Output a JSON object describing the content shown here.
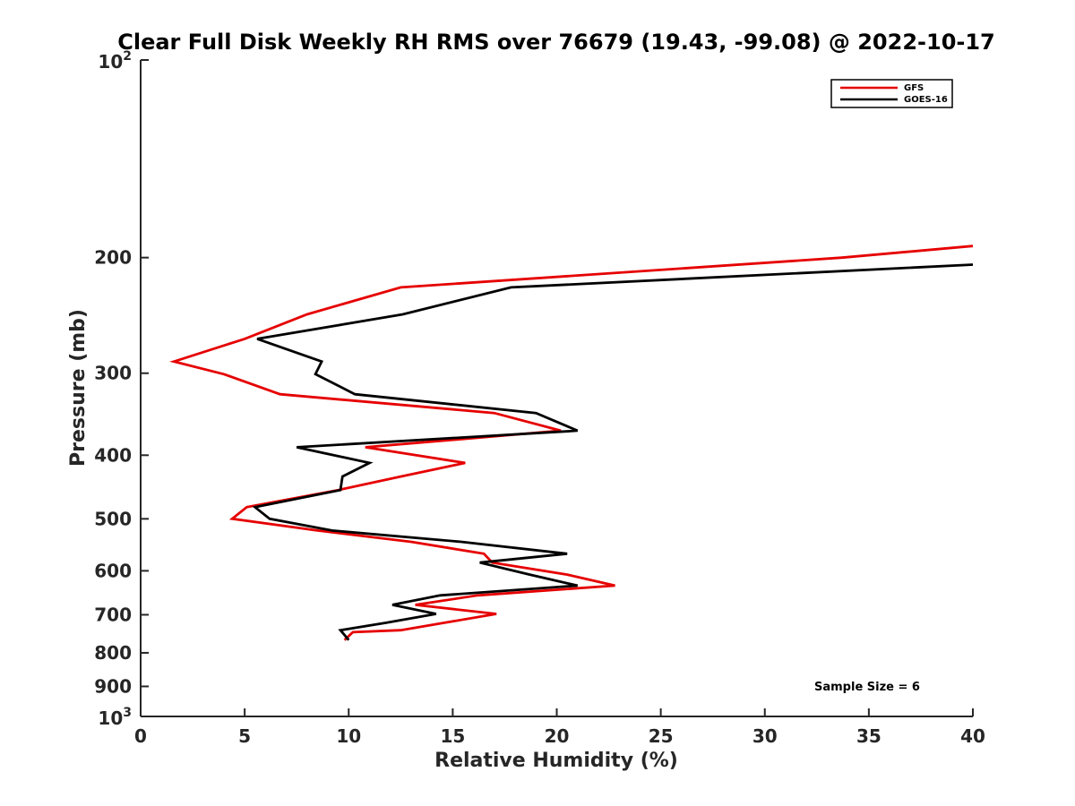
{
  "chart_data": {
    "type": "line",
    "title": "Clear Full Disk Weekly RH RMS over 76679 (19.43, -99.08) @ 2022-10-17",
    "xlabel": "Relative Humidity (%)",
    "ylabel": "Pressure (mb)",
    "xlim": [
      0,
      40
    ],
    "ylim": [
      100,
      1000
    ],
    "y_scale": "log",
    "y_reversed": true,
    "x_ticks": [
      "0",
      "5",
      "10",
      "15",
      "20",
      "25",
      "30",
      "35",
      "40"
    ],
    "y_ticks": [
      {
        "value": 100,
        "base": "10",
        "exp": "2"
      },
      {
        "value": 200,
        "label": "200"
      },
      {
        "value": 300,
        "label": "300"
      },
      {
        "value": 400,
        "label": "400"
      },
      {
        "value": 500,
        "label": "500"
      },
      {
        "value": 600,
        "label": "600"
      },
      {
        "value": 700,
        "label": "700"
      },
      {
        "value": 800,
        "label": "800"
      },
      {
        "value": 900,
        "label": "900"
      },
      {
        "value": 1000,
        "base": "10",
        "exp": "3"
      }
    ],
    "legend_position": "top-right",
    "grid": false,
    "series": [
      {
        "name": "GFS",
        "color": "#e60000",
        "points": [
          [
            40.0,
            192
          ],
          [
            33.7,
            200
          ],
          [
            12.5,
            222
          ],
          [
            8.0,
            244
          ],
          [
            5.0,
            266
          ],
          [
            1.6,
            288
          ],
          [
            4.0,
            301
          ],
          [
            6.7,
            323
          ],
          [
            17.0,
            345
          ],
          [
            20.2,
            367
          ],
          [
            10.8,
            389
          ],
          [
            15.6,
            411
          ],
          [
            12.5,
            431
          ],
          [
            9.5,
            452
          ],
          [
            5.1,
            480
          ],
          [
            4.4,
            500
          ],
          [
            8.5,
            521
          ],
          [
            13.0,
            542
          ],
          [
            16.5,
            565
          ],
          [
            16.9,
            583
          ],
          [
            20.5,
            608
          ],
          [
            22.8,
            632
          ],
          [
            16.2,
            654
          ],
          [
            13.2,
            676
          ],
          [
            17.1,
            698
          ],
          [
            14.6,
            720
          ],
          [
            12.5,
            739
          ],
          [
            10.2,
            744
          ],
          [
            9.8,
            765
          ]
        ]
      },
      {
        "name": "GOES-16",
        "color": "#000000",
        "points": [
          [
            40.0,
            205
          ],
          [
            17.8,
            222
          ],
          [
            12.6,
            244
          ],
          [
            5.6,
            266
          ],
          [
            8.7,
            288
          ],
          [
            8.4,
            301
          ],
          [
            10.3,
            323
          ],
          [
            19.0,
            345
          ],
          [
            21.0,
            367
          ],
          [
            7.5,
            389
          ],
          [
            11.0,
            411
          ],
          [
            9.7,
            431
          ],
          [
            9.6,
            452
          ],
          [
            5.5,
            480
          ],
          [
            6.2,
            500
          ],
          [
            9.2,
            521
          ],
          [
            15.4,
            542
          ],
          [
            20.5,
            565
          ],
          [
            16.3,
            583
          ],
          [
            18.7,
            608
          ],
          [
            21.0,
            632
          ],
          [
            14.4,
            654
          ],
          [
            12.1,
            676
          ],
          [
            14.2,
            698
          ],
          [
            11.8,
            720
          ],
          [
            9.6,
            739
          ],
          [
            10.0,
            765
          ]
        ]
      }
    ],
    "annotations": [
      "Sample Size = 6"
    ]
  }
}
